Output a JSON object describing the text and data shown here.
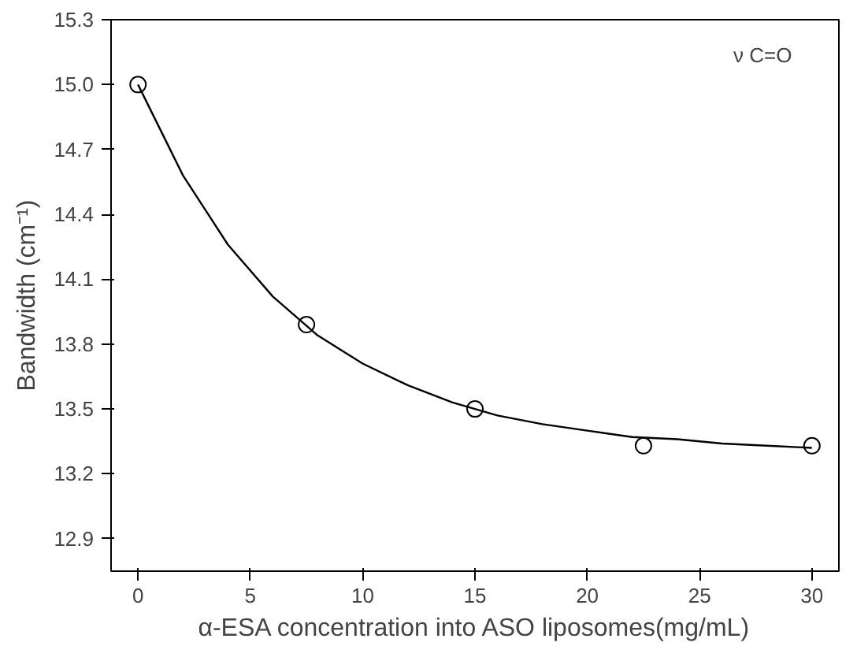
{
  "chart_data": {
    "type": "scatter",
    "xlabel": "α-ESA concentration into ASO liposomes(mg/mL)",
    "ylabel": "Bandwidth (cm⁻¹)",
    "annotations": [
      "ν C=O"
    ],
    "x": [
      0,
      7.5,
      15,
      22.5,
      30
    ],
    "series": [
      {
        "color": "#000000",
        "marker": "circle",
        "values": [
          15.0,
          13.89,
          13.5,
          13.33,
          13.33
        ]
      },
      {
        "type": "line",
        "color": "#000000",
        "line_style": "solid",
        "x": [
          0,
          2,
          4,
          6,
          8,
          10,
          12,
          14,
          16,
          18,
          20,
          22,
          24,
          26,
          28,
          30
        ],
        "values": [
          15.0,
          14.58,
          14.26,
          14.02,
          13.84,
          13.71,
          13.61,
          13.53,
          13.47,
          13.43,
          13.4,
          13.37,
          13.36,
          13.34,
          13.33,
          13.32
        ]
      }
    ],
    "xlim": [
      -1.2,
      31.2
    ],
    "ylim": [
      12.75,
      15.3
    ],
    "xticks": [
      0,
      5,
      10,
      15,
      20,
      25,
      30
    ],
    "yticks": [
      {
        "value": 12.9,
        "label": "12.9"
      },
      {
        "value": 13.2,
        "label": "13.2"
      },
      {
        "value": 13.5,
        "label": "13.5"
      },
      {
        "value": 13.8,
        "label": "13.8"
      },
      {
        "value": 14.1,
        "label": "14.1"
      },
      {
        "value": 14.4,
        "label": "14.4"
      },
      {
        "value": 14.7,
        "label": "14.7"
      },
      {
        "value": 15.0,
        "label": "15.0"
      },
      {
        "value": 15.3,
        "label": "15.3"
      }
    ],
    "grid": false
  }
}
